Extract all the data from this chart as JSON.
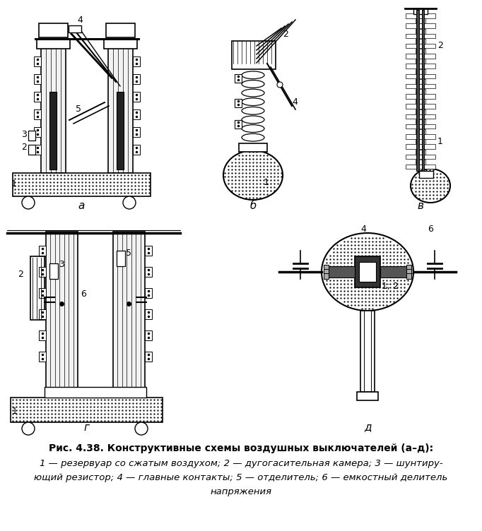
{
  "title": "Рис. 4.38. Конструктивные схемы воздушных выключателей (а–д):",
  "caption_line1": "1 — резервуар со сжатым воздухом; 2 — дугогасительная камера; 3 — шунтиру-",
  "caption_line2": "ющий резистор; 4 — главные контакты; 5 — отделитель; 6 — емкостный делитель",
  "caption_line3": "напряжения",
  "bg_color": "#ffffff",
  "fig_width": 6.82,
  "fig_height": 7.52,
  "label_a": "а",
  "label_b": "б",
  "label_v": "в",
  "label_g": "г",
  "label_d": "д"
}
